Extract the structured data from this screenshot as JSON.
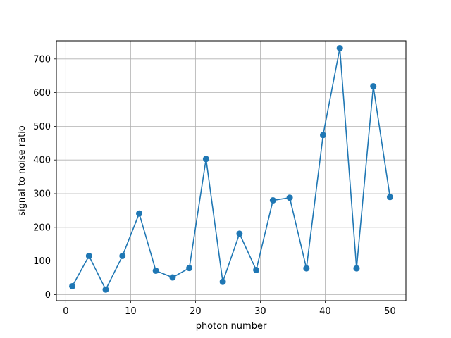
{
  "chart_data": {
    "type": "line",
    "xlabel": "photon number",
    "ylabel": "signal to noise ratio",
    "xlim": [
      -1.45,
      52.45
    ],
    "ylim": [
      -18,
      754
    ],
    "grid": true,
    "x_ticks": [
      0,
      10,
      20,
      30,
      40,
      50
    ],
    "y_ticks": [
      0,
      100,
      200,
      300,
      400,
      500,
      600,
      700
    ],
    "colors": {
      "series": "#1f77b4",
      "grid": "#b0b0b0",
      "axes": "#000000"
    },
    "series": [
      {
        "marker": "circle",
        "x": [
          1.0,
          3.58,
          6.16,
          8.74,
          11.32,
          13.89,
          16.47,
          19.05,
          21.63,
          24.21,
          26.79,
          29.37,
          31.95,
          34.53,
          37.11,
          39.68,
          42.26,
          44.84,
          47.42,
          50.0
        ],
        "y": [
          25,
          115,
          15,
          115,
          241,
          71,
          51,
          79,
          403,
          38,
          181,
          73,
          280,
          288,
          78,
          474,
          732,
          78,
          619,
          290
        ]
      }
    ]
  }
}
